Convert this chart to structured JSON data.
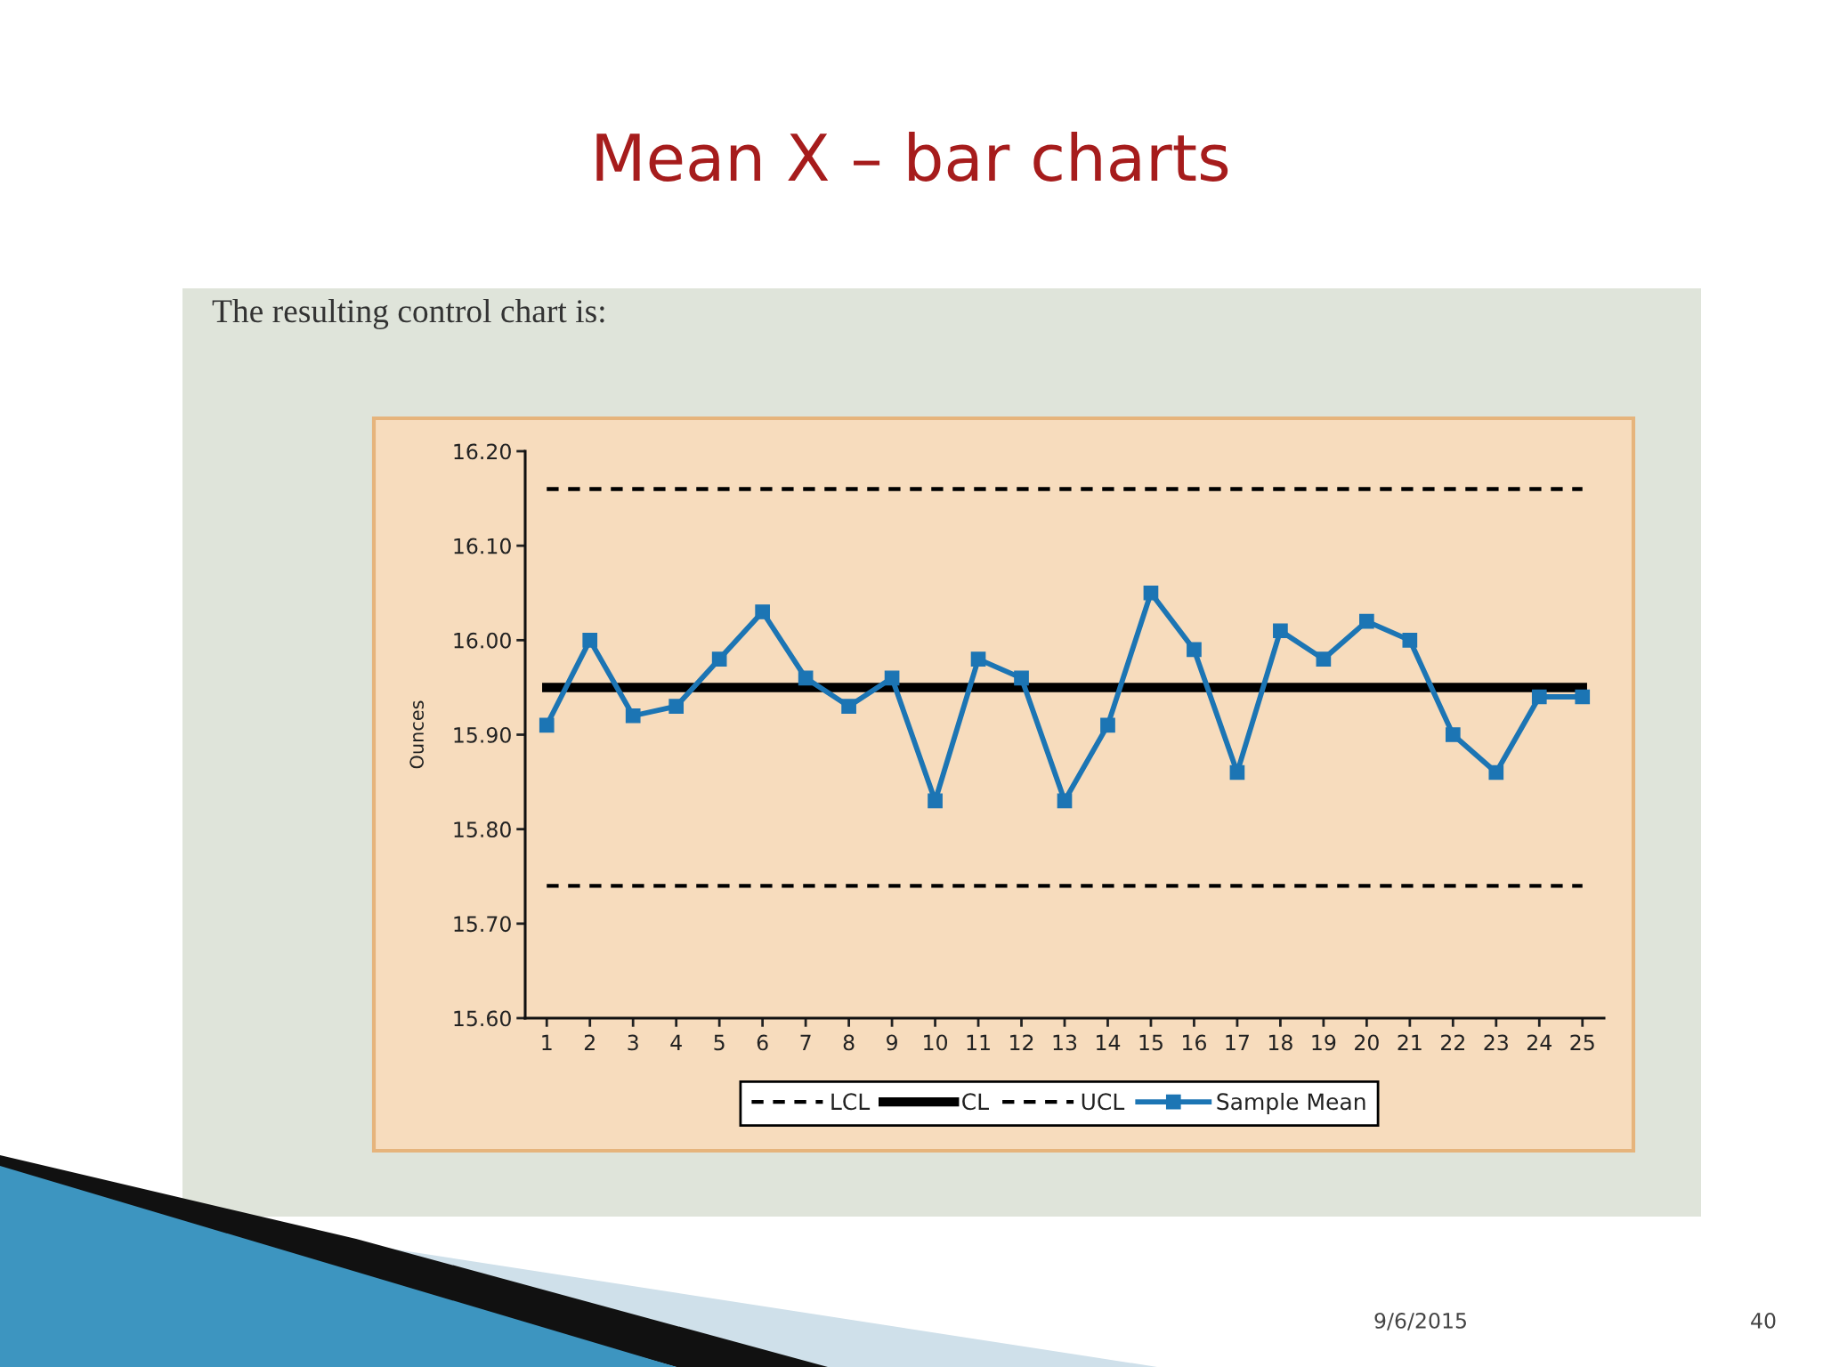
{
  "chart_data": {
    "type": "line",
    "title": "Mean X – bar charts",
    "subtitle": "The resulting control chart is:",
    "ylabel": "Ounces",
    "annotations": [
      "9/6/2015",
      "40"
    ],
    "categories": [
      "1",
      "2",
      "3",
      "4",
      "5",
      "6",
      "7",
      "8",
      "9",
      "10",
      "11",
      "12",
      "13",
      "14",
      "15",
      "16",
      "17",
      "18",
      "19",
      "20",
      "21",
      "22",
      "23",
      "24",
      "25"
    ],
    "series": [
      {
        "name": "LCL",
        "color": "#000000",
        "line_style": "dashed",
        "marker": "none",
        "values": [
          15.74,
          15.74,
          15.74,
          15.74,
          15.74,
          15.74,
          15.74,
          15.74,
          15.74,
          15.74,
          15.74,
          15.74,
          15.74,
          15.74,
          15.74,
          15.74,
          15.74,
          15.74,
          15.74,
          15.74,
          15.74,
          15.74,
          15.74,
          15.74,
          15.74
        ]
      },
      {
        "name": "CL",
        "color": "#000000",
        "line_style": "solid",
        "marker": "none",
        "values": [
          15.95,
          15.95,
          15.95,
          15.95,
          15.95,
          15.95,
          15.95,
          15.95,
          15.95,
          15.95,
          15.95,
          15.95,
          15.95,
          15.95,
          15.95,
          15.95,
          15.95,
          15.95,
          15.95,
          15.95,
          15.95,
          15.95,
          15.95,
          15.95,
          15.95
        ]
      },
      {
        "name": "UCL",
        "color": "#000000",
        "line_style": "dashed",
        "marker": "none",
        "values": [
          16.16,
          16.16,
          16.16,
          16.16,
          16.16,
          16.16,
          16.16,
          16.16,
          16.16,
          16.16,
          16.16,
          16.16,
          16.16,
          16.16,
          16.16,
          16.16,
          16.16,
          16.16,
          16.16,
          16.16,
          16.16,
          16.16,
          16.16,
          16.16,
          16.16
        ]
      },
      {
        "name": "Sample Mean",
        "color": "#1c75b4",
        "line_style": "solid",
        "marker": "square",
        "values": [
          15.91,
          16.0,
          15.92,
          15.93,
          15.98,
          16.03,
          15.96,
          15.93,
          15.96,
          15.83,
          15.98,
          15.96,
          15.83,
          15.91,
          16.05,
          15.99,
          15.86,
          16.01,
          15.98,
          16.02,
          16.0,
          15.9,
          15.86,
          15.94,
          15.94
        ]
      }
    ],
    "ylim": [
      15.6,
      16.2
    ],
    "yticks": [
      {
        "value": 15.6,
        "label": "15.60"
      },
      {
        "value": 15.7,
        "label": "15.70"
      },
      {
        "value": 15.8,
        "label": "15.80"
      },
      {
        "value": 15.9,
        "label": "15.90"
      },
      {
        "value": 16.0,
        "label": "16.00"
      },
      {
        "value": 16.1,
        "label": "16.10"
      },
      {
        "value": 16.2,
        "label": "16.20"
      }
    ],
    "grid": false,
    "legend": "bottom"
  }
}
